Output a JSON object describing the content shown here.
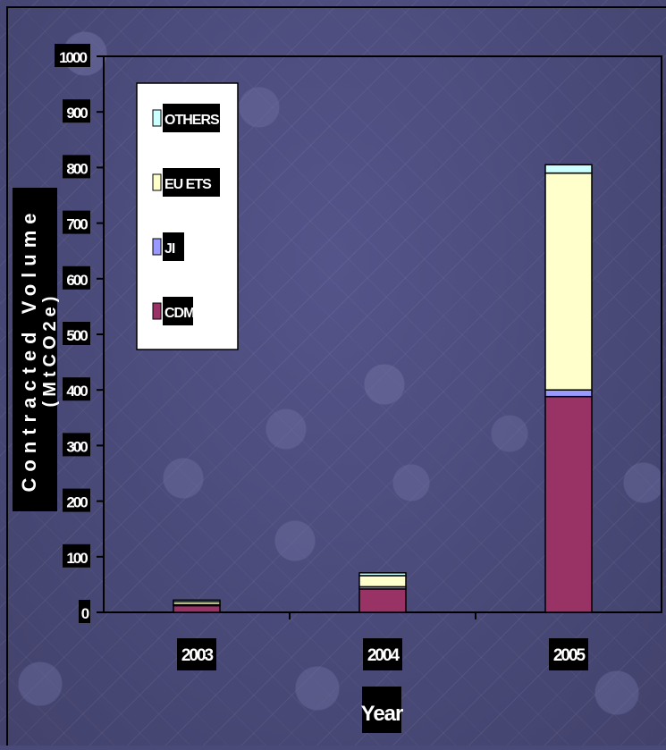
{
  "chart_data": {
    "type": "bar",
    "stacked": true,
    "title": "",
    "xlabel": "Year",
    "ylabel_line1": "Contracted Volume",
    "ylabel_line2": "(MtCO2e)",
    "categories": [
      "2003",
      "2004",
      "2005"
    ],
    "ylim": [
      0,
      1000
    ],
    "yticks": [
      "0",
      "100",
      "200",
      "300",
      "400",
      "500",
      "600",
      "700",
      "800",
      "900",
      "1000"
    ],
    "series": [
      {
        "name": "CDM",
        "color": "#993366",
        "values": [
          12,
          42,
          388
        ]
      },
      {
        "name": "JI",
        "color": "#9999ff",
        "values": [
          2,
          4,
          12
        ]
      },
      {
        "name": "EU ETS",
        "color": "#ffffcc",
        "values": [
          5,
          20,
          390
        ]
      },
      {
        "name": "OTHERS",
        "color": "#ccffff",
        "values": [
          3,
          5,
          15
        ]
      }
    ],
    "legend_placement": "top-left",
    "grid": false
  }
}
